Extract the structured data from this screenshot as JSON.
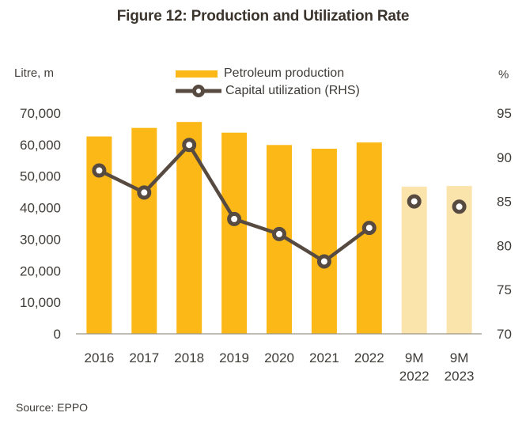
{
  "title": "Figure 12: Production and Utilization Rate",
  "source_note": "Source: EPPO",
  "left_axis_unit": "Litre, m",
  "right_axis_unit": "%",
  "legend": [
    {
      "label": "Petroleum production",
      "type": "bar"
    },
    {
      "label": "Capital utilization (RHS)",
      "type": "line"
    }
  ],
  "colors": {
    "bar": "#FCB817",
    "bar_light": "#FBE3AC",
    "line": "#564A41",
    "marker_fill": "#FFFFFF",
    "axis_text": "#3F3C38",
    "axis_line": "#9C9488"
  },
  "chart_data": {
    "type": "bar+line",
    "title": "Figure 12: Production and Utilization Rate",
    "categories": [
      "2016",
      "2017",
      "2018",
      "2019",
      "2020",
      "2021",
      "2022",
      "9M 2022",
      "9M 2023"
    ],
    "series": [
      {
        "name": "Petroleum production",
        "type": "bar",
        "axis": "left",
        "unit": "Litre, m",
        "values": [
          62600,
          65300,
          67200,
          63800,
          59900,
          58700,
          60700,
          46700,
          46900
        ],
        "light_shade_from_index": 7
      },
      {
        "name": "Capital utilization (RHS)",
        "type": "line",
        "axis": "right",
        "unit": "%",
        "values": [
          88.5,
          86.0,
          91.4,
          83.0,
          81.3,
          78.2,
          82.0,
          85.0,
          84.4
        ],
        "connected_through_index": 6
      }
    ],
    "left_axis": {
      "min": 0,
      "max": 70000,
      "step": 10000,
      "tick_labels": [
        "0",
        "10,000",
        "20,000",
        "30,000",
        "40,000",
        "50,000",
        "60,000",
        "70,000"
      ]
    },
    "right_axis": {
      "min": 70,
      "max": 95,
      "step": 5,
      "tick_labels": [
        "70",
        "75",
        "80",
        "85",
        "90",
        "95"
      ]
    },
    "grid": false,
    "legend_position": "top-center"
  }
}
